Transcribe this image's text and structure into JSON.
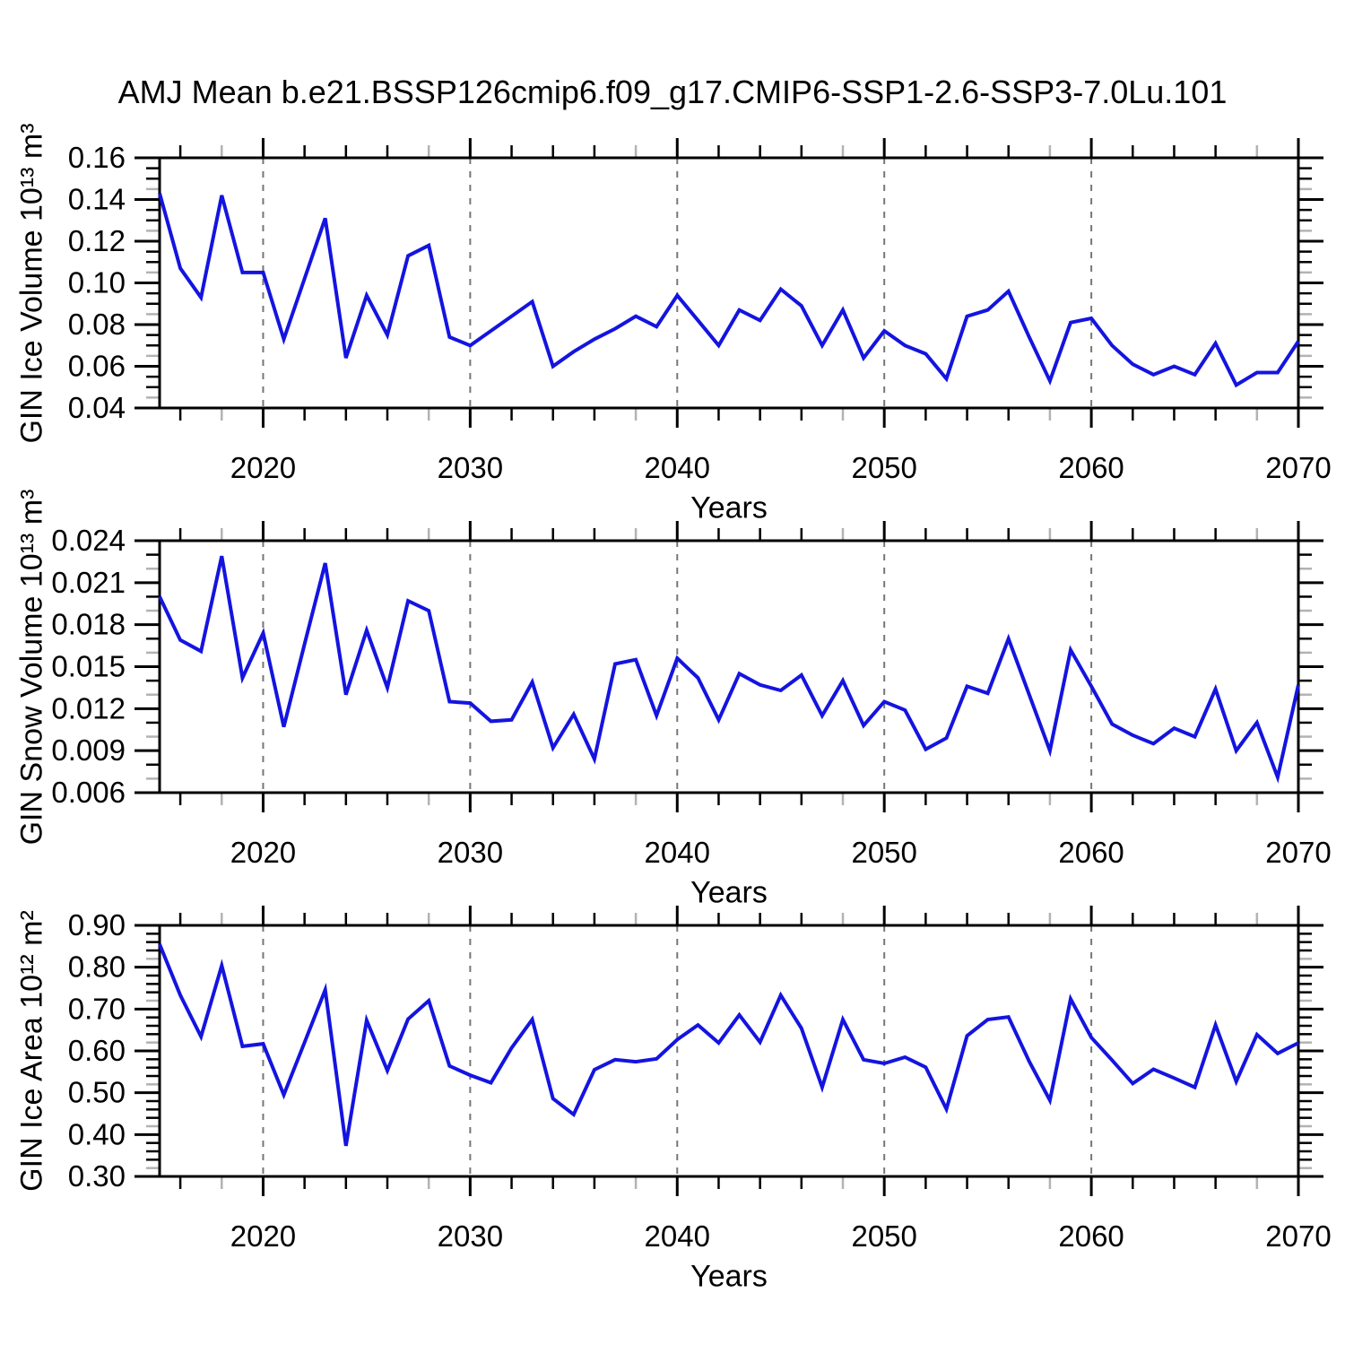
{
  "title": "AMJ Mean b.e21.BSSP126cmip6.f09_g17.CMIP6-SSP1-2.6-SSP3-7.0Lu.101",
  "style": {
    "line_color": "#1414e0",
    "axis_color": "#000000",
    "grid_color": "#777777",
    "minor_grey": "#b3b3b3",
    "background": "#ffffff"
  },
  "x_axis": {
    "label": "Years",
    "min": 2015,
    "max": 2070,
    "major_ticks": [
      2020,
      2030,
      2040,
      2050,
      2060,
      2070
    ],
    "minor_step": 2,
    "dashed_gridlines": [
      2020,
      2030,
      2040,
      2050,
      2060
    ]
  },
  "years": [
    2015,
    2016,
    2017,
    2018,
    2019,
    2020,
    2021,
    2022,
    2023,
    2024,
    2025,
    2026,
    2027,
    2028,
    2029,
    2030,
    2031,
    2032,
    2033,
    2034,
    2035,
    2036,
    2037,
    2038,
    2039,
    2040,
    2041,
    2042,
    2043,
    2044,
    2045,
    2046,
    2047,
    2048,
    2049,
    2050,
    2051,
    2052,
    2053,
    2054,
    2055,
    2056,
    2057,
    2058,
    2059,
    2060,
    2061,
    2062,
    2063,
    2064,
    2065,
    2066,
    2067,
    2068,
    2069,
    2070
  ],
  "chart_data": [
    {
      "type": "line",
      "name": "ice-volume",
      "ylabel": "GIN Ice Volume 10¹³ m³",
      "xlabel": "Years",
      "ylim": [
        0.04,
        0.16
      ],
      "ymajor": 0.02,
      "yminor": 0.005,
      "ydecimals": 2,
      "ytick_labels": [
        "0.16",
        "0.14",
        "0.12",
        "0.10",
        "0.08",
        "0.06",
        "0.04"
      ],
      "grid": "dashed-vertical",
      "legend": "none",
      "values": [
        0.143,
        0.107,
        0.093,
        0.142,
        0.105,
        0.105,
        0.073,
        0.102,
        0.131,
        0.064,
        0.094,
        0.075,
        0.113,
        0.118,
        0.074,
        0.07,
        0.077,
        0.084,
        0.091,
        0.06,
        0.067,
        0.073,
        0.078,
        0.084,
        0.079,
        0.094,
        0.082,
        0.07,
        0.087,
        0.082,
        0.097,
        0.089,
        0.07,
        0.087,
        0.064,
        0.077,
        0.07,
        0.066,
        0.054,
        0.084,
        0.087,
        0.096,
        0.074,
        0.053,
        0.081,
        0.083,
        0.07,
        0.061,
        0.056,
        0.06,
        0.056,
        0.071,
        0.051,
        0.057,
        0.057,
        0.072
      ]
    },
    {
      "type": "line",
      "name": "snow-volume",
      "ylabel": "GIN Snow Volume 10¹³ m³",
      "xlabel": "Years",
      "ylim": [
        0.006,
        0.024
      ],
      "ymajor": 0.003,
      "yminor": 0.001,
      "ydecimals": 3,
      "ytick_labels": [
        "0.024",
        "0.021",
        "0.018",
        "0.015",
        "0.012",
        "0.009",
        "0.006"
      ],
      "grid": "dashed-vertical",
      "legend": "none",
      "values": [
        0.02,
        0.0169,
        0.0161,
        0.0229,
        0.0142,
        0.0174,
        0.0107,
        0.0166,
        0.0224,
        0.013,
        0.0176,
        0.0135,
        0.0197,
        0.019,
        0.0125,
        0.0124,
        0.0111,
        0.0112,
        0.0139,
        0.0092,
        0.0116,
        0.0084,
        0.0152,
        0.0155,
        0.0115,
        0.0156,
        0.0142,
        0.0112,
        0.0145,
        0.0137,
        0.0133,
        0.0144,
        0.0115,
        0.014,
        0.0108,
        0.0125,
        0.0119,
        0.0091,
        0.0099,
        0.0136,
        0.0131,
        0.017,
        0.013,
        0.009,
        0.0162,
        0.0136,
        0.0109,
        0.0101,
        0.0095,
        0.0106,
        0.01,
        0.0134,
        0.009,
        0.011,
        0.0071,
        0.0137
      ]
    },
    {
      "type": "line",
      "name": "ice-area",
      "ylabel": "GIN Ice Area 10¹² m²",
      "xlabel": "Years",
      "ylim": [
        0.3,
        0.9
      ],
      "ymajor": 0.1,
      "yminor": 0.02,
      "ydecimals": 2,
      "ytick_labels": [
        "0.90",
        "0.80",
        "0.70",
        "0.60",
        "0.50",
        "0.40",
        "0.30"
      ],
      "grid": "dashed-vertical",
      "legend": "none",
      "values": [
        0.855,
        0.733,
        0.634,
        0.804,
        0.611,
        0.617,
        0.495,
        0.62,
        0.746,
        0.373,
        0.673,
        0.553,
        0.676,
        0.72,
        0.564,
        0.542,
        0.524,
        0.607,
        0.675,
        0.486,
        0.448,
        0.555,
        0.579,
        0.574,
        0.581,
        0.627,
        0.662,
        0.619,
        0.686,
        0.621,
        0.733,
        0.654,
        0.513,
        0.675,
        0.579,
        0.57,
        0.585,
        0.561,
        0.461,
        0.636,
        0.675,
        0.681,
        0.575,
        0.482,
        0.724,
        0.632,
        0.578,
        0.522,
        0.556,
        0.535,
        0.513,
        0.662,
        0.527,
        0.639,
        0.594,
        0.619
      ]
    }
  ]
}
